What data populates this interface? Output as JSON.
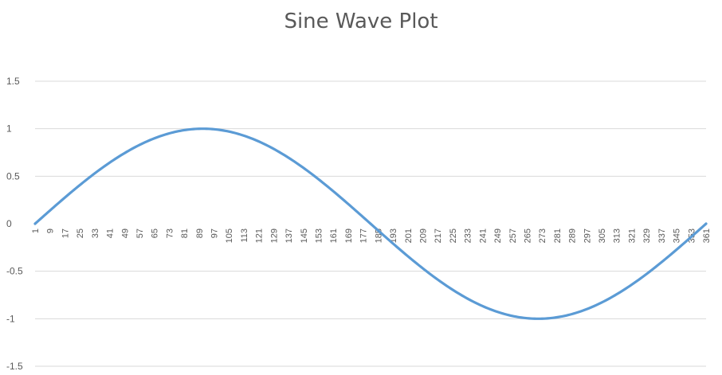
{
  "chart_data": {
    "type": "line",
    "title": "Sine Wave Plot",
    "xlabel": "",
    "ylabel": "",
    "ylim": [
      -1.5,
      1.5
    ],
    "y_ticks": [
      "1.5",
      "1",
      "0.5",
      "0",
      "-0.5",
      "-1",
      "-1.5"
    ],
    "y_tick_values": [
      1.5,
      1,
      0.5,
      0,
      -0.5,
      -1,
      -1.5
    ],
    "x_tick_labels": [
      "1",
      "9",
      "17",
      "25",
      "33",
      "41",
      "49",
      "57",
      "65",
      "73",
      "81",
      "89",
      "97",
      "105",
      "113",
      "121",
      "129",
      "137",
      "145",
      "153",
      "161",
      "169",
      "177",
      "185",
      "193",
      "201",
      "209",
      "217",
      "225",
      "233",
      "241",
      "249",
      "257",
      "265",
      "273",
      "281",
      "289",
      "297",
      "305",
      "313",
      "321",
      "329",
      "337",
      "345",
      "353",
      "361"
    ],
    "x_range": [
      1,
      361
    ],
    "grid": true,
    "legend": "none",
    "series": [
      {
        "color": "#5b9bd5",
        "x_start": 1,
        "x_end": 361,
        "function": "sin((x-1) degrees)",
        "x": [
          1,
          16,
          31,
          46,
          61,
          76,
          91,
          106,
          121,
          136,
          151,
          166,
          181,
          196,
          211,
          226,
          241,
          256,
          271,
          286,
          301,
          316,
          331,
          346,
          361
        ],
        "values": [
          0,
          0.259,
          0.5,
          0.707,
          0.866,
          0.966,
          1,
          0.966,
          0.866,
          0.707,
          0.5,
          0.259,
          0,
          -0.259,
          -0.5,
          -0.707,
          -0.866,
          -0.966,
          -1,
          -0.966,
          -0.866,
          -0.707,
          -0.5,
          -0.259,
          0
        ]
      }
    ]
  }
}
